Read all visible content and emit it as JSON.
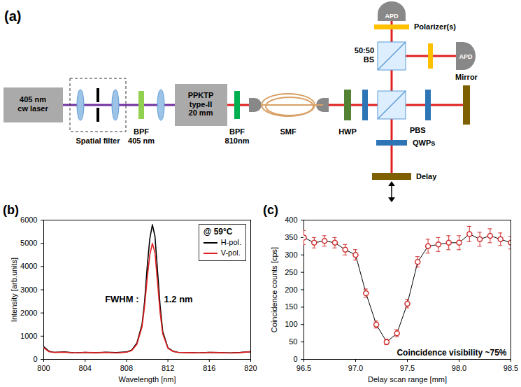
{
  "diagram": {
    "label": "(a)",
    "laser": [
      "405 nm",
      "cw laser"
    ],
    "spatial_filter": [
      "Spatial filter"
    ],
    "bpf_pump": [
      "BPF",
      "405 nm"
    ],
    "crystal": [
      "PPKTP",
      "type-II",
      "20 mm"
    ],
    "bpf_signal": [
      "BPF",
      "810nm"
    ],
    "fiber": "SMF",
    "hwp": "HWP",
    "pbs": "PBS",
    "qwps": "QWPs",
    "mirror": "Mirror",
    "delay": "Delay",
    "bs": [
      "50:50",
      "BS"
    ],
    "polarizers": "Polarizer(s)",
    "detectors": "APD"
  },
  "chart_data": [
    {
      "type": "line",
      "label": "(b)",
      "xlabel": "Wavelength [nm]",
      "ylabel": "Intensity [arb.units]",
      "xlim": [
        800,
        820
      ],
      "xticks": [
        800,
        804,
        808,
        812,
        816,
        820
      ],
      "ylim": [
        0,
        6000
      ],
      "yticks": [
        0,
        1000,
        2000,
        3000,
        4000,
        5000,
        6000
      ],
      "grid": false,
      "legend": "upper right",
      "legend_title": "@ 59°C",
      "annotations": [
        "FWHM :",
        "1.2 nm"
      ],
      "x": [
        800,
        800.5,
        801,
        802,
        803,
        804,
        805,
        806,
        807,
        808,
        808.5,
        809,
        809.5,
        809.75,
        810,
        810.25,
        810.5,
        810.75,
        811,
        811.25,
        811.5,
        812,
        812.5,
        813,
        814,
        815,
        816,
        817,
        818,
        819,
        820
      ],
      "series": [
        {
          "name": "H-pol.",
          "color": "#000000",
          "values": [
            550,
            350,
            300,
            320,
            280,
            300,
            280,
            310,
            290,
            320,
            400,
            700,
            1500,
            2500,
            4000,
            5200,
            5800,
            5300,
            3800,
            2300,
            1200,
            500,
            350,
            300,
            290,
            280,
            300,
            290,
            280,
            300,
            330
          ]
        },
        {
          "name": "V-pol.",
          "color": "#e02020",
          "values": [
            500,
            330,
            300,
            310,
            280,
            300,
            290,
            300,
            280,
            310,
            380,
            650,
            1400,
            2300,
            3500,
            4500,
            5000,
            4600,
            3300,
            2000,
            1100,
            480,
            340,
            300,
            290,
            280,
            300,
            290,
            270,
            290,
            330
          ]
        }
      ]
    },
    {
      "type": "scatter",
      "label": "(c)",
      "xlabel": "Delay scan range [mm]",
      "ylabel": "Coincidence counts [cps]",
      "xlim": [
        96.5,
        98.5
      ],
      "xticks": [
        96.5,
        {
          "value": 97,
          "label": "97.0"
        },
        97.5,
        {
          "value": 98,
          "label": "98.0"
        },
        98.5
      ],
      "ylim": [
        0,
        400
      ],
      "yticks": [
        0,
        50,
        100,
        150,
        200,
        250,
        300,
        350,
        400
      ],
      "grid": false,
      "marker": "circle",
      "line_style": "solid",
      "color": "#d03030",
      "annotations": [
        "Coincidence visibility ~75%"
      ],
      "x": [
        96.5,
        96.6,
        96.7,
        96.8,
        96.9,
        97.0,
        97.1,
        97.2,
        97.3,
        97.4,
        97.5,
        97.6,
        97.7,
        97.8,
        97.9,
        98.0,
        98.1,
        98.2,
        98.3,
        98.4,
        98.5
      ],
      "values": [
        350,
        335,
        340,
        335,
        315,
        300,
        190,
        100,
        50,
        75,
        160,
        280,
        325,
        330,
        335,
        335,
        360,
        345,
        355,
        345,
        335
      ],
      "errors": [
        20,
        15,
        15,
        15,
        15,
        15,
        12,
        10,
        8,
        10,
        12,
        15,
        20,
        20,
        20,
        20,
        22,
        20,
        20,
        18,
        18
      ]
    }
  ]
}
